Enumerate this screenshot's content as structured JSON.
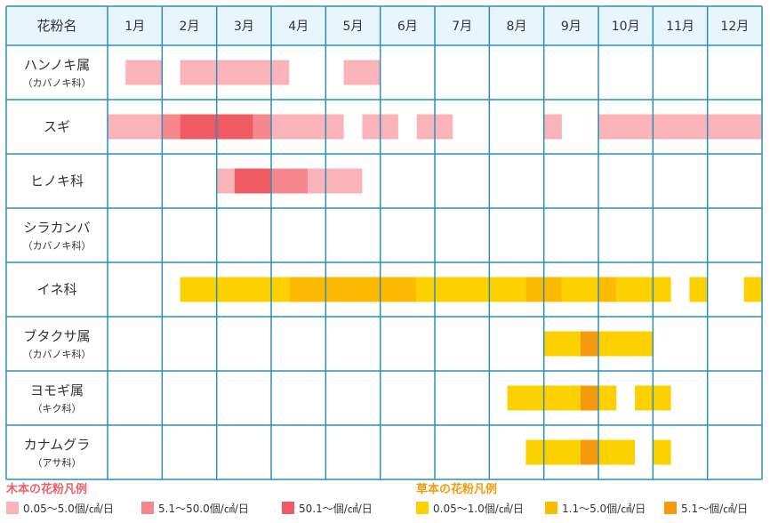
{
  "colors": {
    "header_bg": "#e8f5fb",
    "grid": "#2a8fc0",
    "tree": [
      "#f9b3b9",
      "#f6888d",
      "#f05a62"
    ],
    "grass": [
      "#fdd100",
      "#fcbb00",
      "#f59a0c"
    ]
  },
  "chart_data": {
    "type": "table",
    "header_label": "花粉名",
    "months": [
      "1月",
      "2月",
      "3月",
      "4月",
      "5月",
      "6月",
      "7月",
      "8月",
      "9月",
      "10月",
      "11月",
      "12月"
    ],
    "unit_note": "Bar positions are in months from Jan 1 (0 = start of January, 12 = end of December). level indexes the legend (0 = lowest band).",
    "rows": [
      {
        "name": "ハンノキ属",
        "sub": "（カバノキ科）",
        "group": "tree",
        "bars": [
          {
            "start": 0.33,
            "end": 1.0,
            "level": 0
          },
          {
            "start": 1.33,
            "end": 3.33,
            "level": 0
          },
          {
            "start": 4.33,
            "end": 5.0,
            "level": 0
          }
        ]
      },
      {
        "name": "スギ",
        "sub": "",
        "group": "tree",
        "bars": [
          {
            "start": 0.0,
            "end": 1.0,
            "level": 0
          },
          {
            "start": 1.0,
            "end": 1.33,
            "level": 1
          },
          {
            "start": 1.33,
            "end": 2.0,
            "level": 2
          },
          {
            "start": 2.0,
            "end": 2.67,
            "level": 2
          },
          {
            "start": 2.67,
            "end": 3.0,
            "level": 1
          },
          {
            "start": 3.0,
            "end": 4.33,
            "level": 0
          },
          {
            "start": 4.67,
            "end": 5.33,
            "level": 0
          },
          {
            "start": 5.67,
            "end": 6.33,
            "level": 0
          },
          {
            "start": 8.0,
            "end": 8.33,
            "level": 0
          },
          {
            "start": 9.0,
            "end": 12.0,
            "level": 0
          }
        ]
      },
      {
        "name": "ヒノキ科",
        "sub": "",
        "group": "tree",
        "bars": [
          {
            "start": 2.0,
            "end": 2.33,
            "level": 0
          },
          {
            "start": 2.33,
            "end": 3.0,
            "level": 2
          },
          {
            "start": 3.0,
            "end": 3.67,
            "level": 1
          },
          {
            "start": 3.67,
            "end": 4.67,
            "level": 0
          }
        ]
      },
      {
        "name": "シラカンバ",
        "sub": "（カバノキ科）",
        "group": "tree",
        "bars": []
      },
      {
        "name": "イネ科",
        "sub": "",
        "group": "grass",
        "bars": [
          {
            "start": 1.33,
            "end": 3.33,
            "level": 0
          },
          {
            "start": 3.33,
            "end": 5.67,
            "level": 1
          },
          {
            "start": 5.67,
            "end": 7.67,
            "level": 0
          },
          {
            "start": 7.67,
            "end": 8.0,
            "level": 1
          },
          {
            "start": 8.0,
            "end": 8.33,
            "level": 1
          },
          {
            "start": 8.33,
            "end": 9.0,
            "level": 0
          },
          {
            "start": 9.0,
            "end": 9.33,
            "level": 1
          },
          {
            "start": 9.33,
            "end": 10.33,
            "level": 0
          },
          {
            "start": 10.67,
            "end": 11.0,
            "level": 0
          },
          {
            "start": 11.67,
            "end": 12.0,
            "level": 0
          }
        ]
      },
      {
        "name": "ブタクサ属",
        "sub": "（カバノキ科）",
        "group": "grass",
        "bars": [
          {
            "start": 8.0,
            "end": 8.67,
            "level": 0
          },
          {
            "start": 8.67,
            "end": 9.0,
            "level": 2
          },
          {
            "start": 9.0,
            "end": 10.0,
            "level": 0
          }
        ]
      },
      {
        "name": "ヨモギ属",
        "sub": "（キク科）",
        "group": "grass",
        "bars": [
          {
            "start": 7.33,
            "end": 8.67,
            "level": 0
          },
          {
            "start": 8.67,
            "end": 9.0,
            "level": 2
          },
          {
            "start": 9.0,
            "end": 9.33,
            "level": 0
          },
          {
            "start": 9.67,
            "end": 10.33,
            "level": 0
          }
        ]
      },
      {
        "name": "カナムグラ",
        "sub": "（アサ科）",
        "group": "grass",
        "bars": [
          {
            "start": 7.67,
            "end": 8.67,
            "level": 0
          },
          {
            "start": 8.67,
            "end": 9.0,
            "level": 2
          },
          {
            "start": 9.0,
            "end": 9.67,
            "level": 0
          },
          {
            "start": 10.0,
            "end": 10.33,
            "level": 0
          }
        ]
      }
    ]
  },
  "legend": {
    "tree": {
      "title": "木本の花粉凡例",
      "items": [
        "0.05〜5.0個/㎠/日",
        "5.1〜50.0個/㎠/日",
        "50.1〜個/㎠/日"
      ]
    },
    "grass": {
      "title": "草本の花粉凡例",
      "items": [
        "0.05〜1.0個/㎠/日",
        "1.1〜5.0個/㎠/日",
        "5.1〜個/㎠/日"
      ]
    }
  }
}
